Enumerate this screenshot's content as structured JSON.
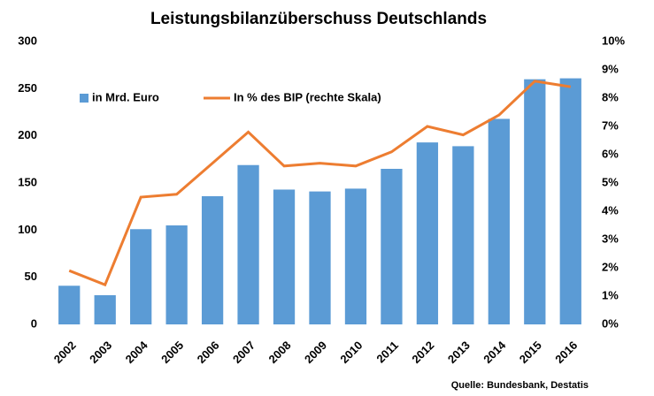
{
  "chart_data": {
    "type": "bar",
    "title": "Leistungsbilanzüberschuss Deutschlands",
    "categories": [
      "2002",
      "2003",
      "2004",
      "2005",
      "2006",
      "2007",
      "2008",
      "2009",
      "2010",
      "2011",
      "2012",
      "2013",
      "2014",
      "2015",
      "2016"
    ],
    "series": [
      {
        "name": "in Mrd. Euro",
        "color": "#5b9bd5",
        "type": "bar",
        "values": [
          41,
          31,
          101,
          105,
          136,
          169,
          143,
          141,
          144,
          165,
          193,
          189,
          218,
          260,
          261
        ]
      },
      {
        "name": "In % des BIP (rechte Skala)",
        "color": "#ed7d31",
        "type": "line",
        "axis": "y2",
        "values": [
          1.9,
          1.4,
          4.5,
          4.6,
          5.7,
          6.8,
          5.6,
          5.7,
          5.6,
          6.1,
          7.0,
          6.7,
          7.4,
          8.6,
          8.4
        ]
      }
    ],
    "ylim": [
      0,
      300
    ],
    "yticks": [
      0,
      50,
      100,
      150,
      200,
      250,
      300
    ],
    "y2lim": [
      0,
      10
    ],
    "y2ticks": [
      {
        "value": 0,
        "label": "0%"
      },
      {
        "value": 1,
        "label": "1%"
      },
      {
        "value": 2,
        "label": "2%"
      },
      {
        "value": 3,
        "label": "3%"
      },
      {
        "value": 4,
        "label": "4%"
      },
      {
        "value": 5,
        "label": "5%"
      },
      {
        "value": 6,
        "label": "6%"
      },
      {
        "value": 7,
        "label": "7%"
      },
      {
        "value": 8,
        "label": "8%"
      },
      {
        "value": 9,
        "label": "9%"
      },
      {
        "value": 10,
        "label": "10%"
      }
    ],
    "grid": false,
    "legend": "upper left",
    "source": "Quelle: Bundesbank, Destatis"
  }
}
